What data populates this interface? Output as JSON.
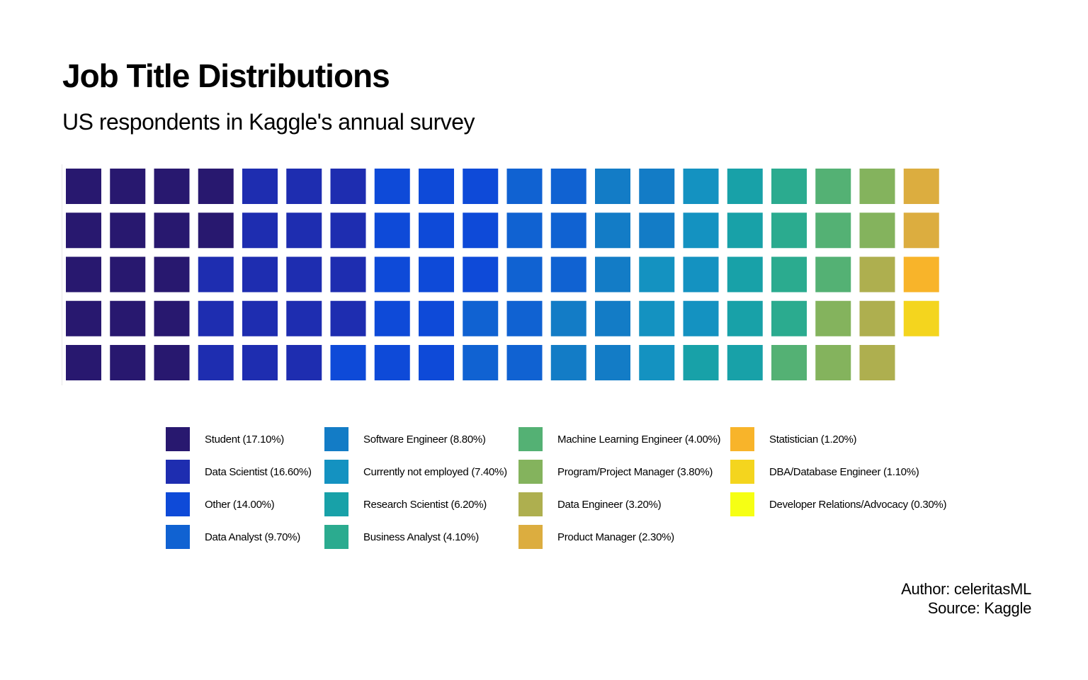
{
  "chart_data": {
    "type": "waffle",
    "title": "Job Title Distributions",
    "subtitle": "US respondents in Kaggle's annual survey",
    "grid": {
      "rows": 5,
      "columns": 20,
      "fill_order": "column-major",
      "tiles_per_category": "percent"
    },
    "legend_position": "bottom",
    "categories": [
      {
        "label": "Student (17.10%)",
        "name": "Student",
        "percent": 17.1,
        "tiles": 17,
        "color": "#28186F"
      },
      {
        "label": "Data Scientist (16.60%)",
        "name": "Data Scientist",
        "percent": 16.6,
        "tiles": 17,
        "color": "#1E2DB0"
      },
      {
        "label": "Other (14.00%)",
        "name": "Other",
        "percent": 14.0,
        "tiles": 14,
        "color": "#0E4AD8"
      },
      {
        "label": "Data Analyst (9.70%)",
        "name": "Data Analyst",
        "percent": 9.7,
        "tiles": 10,
        "color": "#1062D2"
      },
      {
        "label": "Software Engineer (8.80%)",
        "name": "Software Engineer",
        "percent": 8.8,
        "tiles": 9,
        "color": "#137CC6"
      },
      {
        "label": "Currently not employed (7.40%)",
        "name": "Currently not employed",
        "percent": 7.4,
        "tiles": 7,
        "color": "#1492C1"
      },
      {
        "label": "Research Scientist (6.20%)",
        "name": "Research Scientist",
        "percent": 6.2,
        "tiles": 6,
        "color": "#18A1A8"
      },
      {
        "label": "Business Analyst (4.10%)",
        "name": "Business Analyst",
        "percent": 4.1,
        "tiles": 4,
        "color": "#2BAB8F"
      },
      {
        "label": "Machine Learning Engineer (4.00%)",
        "name": "Machine Learning Engineer",
        "percent": 4.0,
        "tiles": 4,
        "color": "#54B174"
      },
      {
        "label": "Program/Project Manager (3.80%)",
        "name": "Program/Project Manager",
        "percent": 3.8,
        "tiles": 4,
        "color": "#84B35D"
      },
      {
        "label": "Data Engineer (3.20%)",
        "name": "Data Engineer",
        "percent": 3.2,
        "tiles": 3,
        "color": "#AEAF4F"
      },
      {
        "label": "Product Manager (2.30%)",
        "name": "Product Manager",
        "percent": 2.3,
        "tiles": 2,
        "color": "#DCAD3F"
      },
      {
        "label": "Statistician (1.20%)",
        "name": "Statistician",
        "percent": 1.2,
        "tiles": 1,
        "color": "#F8B42A"
      },
      {
        "label": "DBA/Database Engineer (1.10%)",
        "name": "DBA/Database Engineer",
        "percent": 1.1,
        "tiles": 1,
        "color": "#F4D51E"
      },
      {
        "label": "Developer Relations/Advocacy (0.30%)",
        "name": "Developer Relations/Advocacy",
        "percent": 0.3,
        "tiles": 0,
        "color": "#F6FF14"
      }
    ]
  },
  "caption": {
    "author": "Author: celeritasML",
    "source": "Source: Kaggle"
  }
}
